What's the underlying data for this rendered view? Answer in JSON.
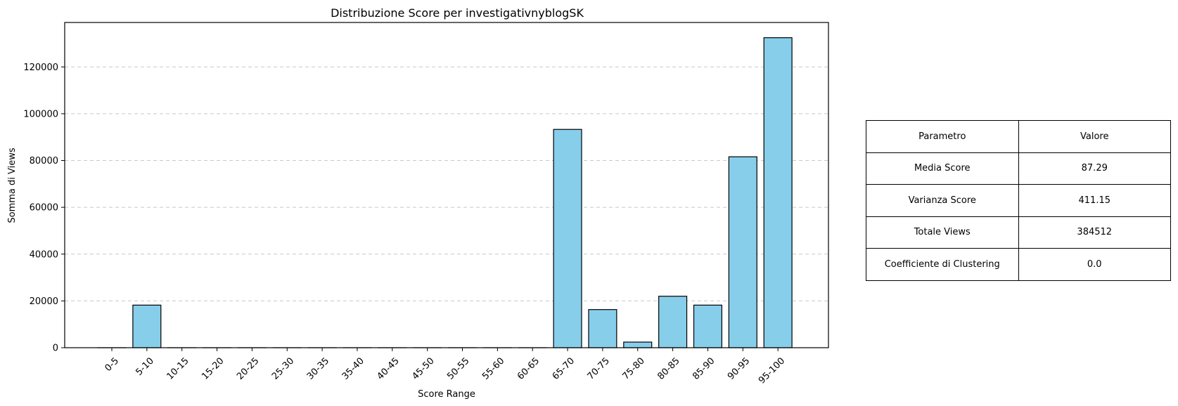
{
  "chart_data": {
    "type": "bar",
    "title": "Distribuzione Score per investigativnyblogSK",
    "xlabel": "Score Range",
    "ylabel": "Somma di Views",
    "categories": [
      "0-5",
      "5-10",
      "10-15",
      "15-20",
      "20-25",
      "25-30",
      "30-35",
      "35-40",
      "40-45",
      "45-50",
      "50-55",
      "55-60",
      "60-65",
      "65-70",
      "70-75",
      "75-80",
      "80-85",
      "85-90",
      "90-95",
      "95-100"
    ],
    "values": [
      0,
      18200,
      0,
      0,
      0,
      0,
      0,
      0,
      0,
      0,
      0,
      0,
      0,
      93300,
      16300,
      2400,
      22000,
      18200,
      81600,
      132500
    ],
    "ylim": [
      0,
      139000
    ],
    "yticks": [
      0,
      20000,
      40000,
      60000,
      80000,
      100000,
      120000
    ],
    "grid": "y-dashed",
    "bar_color": "#87ceeb",
    "edge_color": "#000000"
  },
  "table": {
    "headers": [
      "Parametro",
      "Valore"
    ],
    "rows": [
      [
        "Media Score",
        "87.29"
      ],
      [
        "Varianza Score",
        "411.15"
      ],
      [
        "Totale Views",
        "384512"
      ],
      [
        "Coefficiente di Clustering",
        "0.0"
      ]
    ]
  }
}
